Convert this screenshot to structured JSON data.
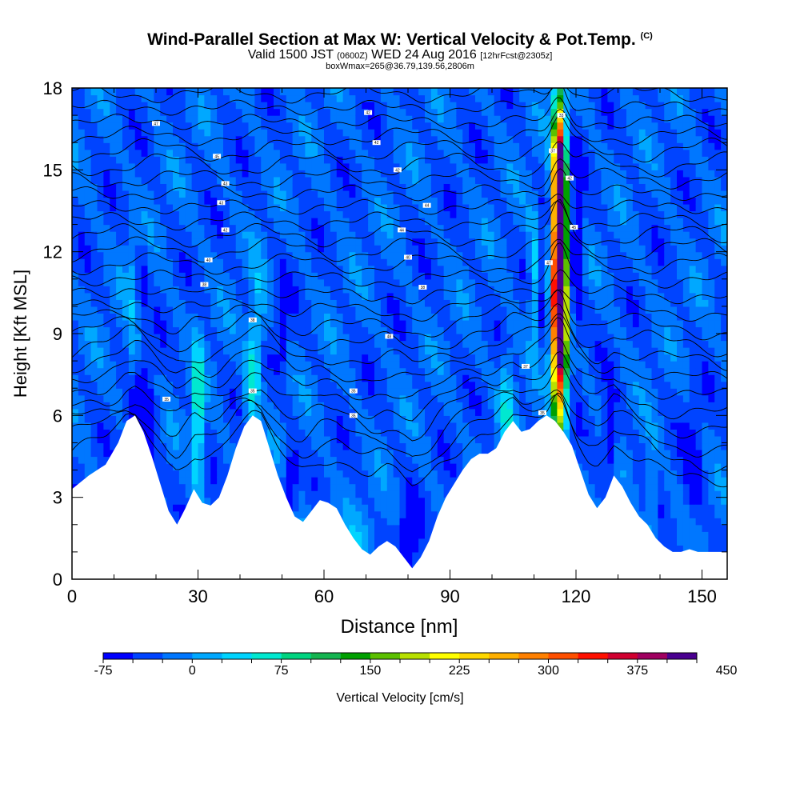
{
  "chart_data": {
    "type": "heatmap",
    "title": "Wind-Parallel Section at Max W: Vertical Velocity & Pot.Temp.",
    "title_mark": "(C)",
    "subtitle_main": "Valid 1500 JST",
    "subtitle_utc": "(0600Z)",
    "subtitle_date": "WED 24 Aug 2016",
    "subtitle_fcst": "[12hrFcst@2305z]",
    "subtitle2": "boxWmax=265@36.79,139.56,2806m",
    "xlabel": "Distance [nm]",
    "ylabel": "Height [Kft MSL]",
    "xlim": [
      0,
      156
    ],
    "ylim": [
      0,
      18
    ],
    "x_ticks": [
      "0",
      "30",
      "60",
      "90",
      "120",
      "150"
    ],
    "y_ticks": [
      "0",
      "3",
      "6",
      "9",
      "12",
      "15",
      "18"
    ],
    "colorbar": {
      "label": "Vertical Velocity [cm/s]",
      "min": -75,
      "step": 25,
      "tick_labels": [
        "-75",
        "0",
        "75",
        "150",
        "225",
        "300",
        "375",
        "450"
      ],
      "colors": [
        "#0000ff",
        "#0044ff",
        "#0077ff",
        "#00a8ff",
        "#00d4ff",
        "#00e8d0",
        "#00d480",
        "#14b450",
        "#00a000",
        "#5cc000",
        "#b8e000",
        "#ffff00",
        "#ffd800",
        "#ffb000",
        "#ff8000",
        "#ff5000",
        "#ff1000",
        "#d00030",
        "#a00060",
        "#4a0090"
      ]
    },
    "background_w": -25,
    "w_features": [
      {
        "x": 14.5,
        "z": 11.0,
        "w": 30,
        "sx": 1.2,
        "sz": 1.5,
        "tilt": 0.0
      },
      {
        "x": 14.5,
        "z": 8.0,
        "w": 40,
        "sx": 1.2,
        "sz": 1.0,
        "tilt": 0.0
      },
      {
        "x": 17.0,
        "z": 5.5,
        "w": -75,
        "sx": 2.0,
        "sz": 1.5,
        "tilt": 0.0
      },
      {
        "x": 16.5,
        "z": 11.0,
        "w": -50,
        "sx": 0.8,
        "sz": 1.0,
        "tilt": 0.0
      },
      {
        "x": 30.0,
        "z": 6.5,
        "w": 110,
        "sx": 0.9,
        "sz": 1.6,
        "tilt": 0.0
      },
      {
        "x": 30.0,
        "z": 4.0,
        "w": 40,
        "sx": 1.0,
        "sz": 1.2,
        "tilt": 0.0
      },
      {
        "x": 44.0,
        "z": 9.0,
        "w": 65,
        "sx": 1.4,
        "sz": 1.6,
        "tilt": 0.3
      },
      {
        "x": 42.5,
        "z": 7.0,
        "w": 60,
        "sx": 1.2,
        "sz": 1.2,
        "tilt": 0.0
      },
      {
        "x": 50.0,
        "z": 9.5,
        "w": -60,
        "sx": 0.9,
        "sz": 1.2,
        "tilt": 0.0
      },
      {
        "x": 52.0,
        "z": 3.5,
        "w": -60,
        "sx": 1.2,
        "sz": 1.0,
        "tilt": 0.0
      },
      {
        "x": 55.0,
        "z": 1.5,
        "w": 30,
        "sx": 3.0,
        "sz": 1.0,
        "tilt": 0.0
      },
      {
        "x": 67.0,
        "z": 1.3,
        "w": 30,
        "sx": 4.0,
        "sz": 0.8,
        "tilt": 0.0
      },
      {
        "x": 80.0,
        "z": 1.5,
        "w": -60,
        "sx": 1.5,
        "sz": 1.0,
        "tilt": 0.0
      },
      {
        "x": 103.5,
        "z": 6.5,
        "w": 70,
        "sx": 1.3,
        "sz": 1.4,
        "tilt": 0.0
      },
      {
        "x": 110.0,
        "z": 11.0,
        "w": 70,
        "sx": 0.9,
        "sz": 1.6,
        "tilt": 0.0
      },
      {
        "x": 116.0,
        "z": 11.5,
        "w": 450,
        "sx": 1.25,
        "sz": 2.8,
        "tilt": 0.0
      },
      {
        "x": 116.0,
        "z": 8.0,
        "w": 250,
        "sx": 1.2,
        "sz": 2.0,
        "tilt": 0.0
      },
      {
        "x": 116.0,
        "z": 15.0,
        "w": 330,
        "sx": 0.95,
        "sz": 2.0,
        "tilt": 0.0
      },
      {
        "x": 112.5,
        "z": 11.0,
        "w": -50,
        "sx": 0.7,
        "sz": 2.0,
        "tilt": 0.0
      },
      {
        "x": 120.0,
        "z": 12.0,
        "w": -60,
        "sx": 1.0,
        "sz": 2.5,
        "tilt": 0.0
      },
      {
        "x": 128.0,
        "z": 5.0,
        "w": -60,
        "sx": 1.2,
        "sz": 1.2,
        "tilt": 0.0
      },
      {
        "x": 138.0,
        "z": 3.0,
        "w": 60,
        "sx": 0.8,
        "sz": 1.3,
        "tilt": 0.0
      },
      {
        "x": 148.0,
        "z": 4.0,
        "w": -40,
        "sx": 1.5,
        "sz": 1.5,
        "tilt": 0.0
      }
    ],
    "terrain": {
      "x": [
        0,
        4,
        8,
        11,
        13,
        15,
        17,
        19,
        21,
        23,
        25,
        27,
        29,
        31,
        33,
        35,
        37,
        39,
        41,
        43,
        45,
        47,
        49,
        51,
        53,
        55,
        57,
        59,
        61,
        63,
        65,
        67,
        69,
        71,
        73,
        75,
        77,
        79,
        81,
        83,
        85,
        87,
        89,
        91,
        93,
        95,
        97,
        99,
        101,
        103,
        105,
        107,
        109,
        111,
        113,
        115,
        117,
        119,
        121,
        123,
        125,
        127,
        129,
        131,
        133,
        135,
        137,
        139,
        141,
        143,
        145,
        147,
        149,
        151,
        153,
        155,
        156
      ],
      "z": [
        3.3,
        3.8,
        4.2,
        5.0,
        5.8,
        6.0,
        5.4,
        4.5,
        3.5,
        2.5,
        2.0,
        2.6,
        3.3,
        2.8,
        2.7,
        3.0,
        3.8,
        4.8,
        5.6,
        6.0,
        5.8,
        4.8,
        3.8,
        3.0,
        2.3,
        2.1,
        2.5,
        2.9,
        2.8,
        2.6,
        2.0,
        1.5,
        1.1,
        0.9,
        1.2,
        1.4,
        1.2,
        0.8,
        0.4,
        0.8,
        1.4,
        2.3,
        3.0,
        3.5,
        4.0,
        4.4,
        4.6,
        4.6,
        4.8,
        5.4,
        5.8,
        5.4,
        5.5,
        5.8,
        6.0,
        5.8,
        5.4,
        4.9,
        4.0,
        3.1,
        2.6,
        3.0,
        3.8,
        3.4,
        2.8,
        2.3,
        2.0,
        1.5,
        1.2,
        1.0,
        1.0,
        1.1,
        1.0,
        1.0,
        1.0,
        1.0,
        1.0
      ]
    },
    "theta_levels": {
      "count": 26,
      "start_height": 4.8,
      "spacing": 0.52
    },
    "theta_labels": [
      "47",
      "45",
      "43",
      "43",
      "42",
      "40",
      "38",
      "38",
      "35",
      "35",
      "35",
      "35",
      "42",
      "42",
      "42",
      "44",
      "44",
      "40",
      "38",
      "48",
      "37",
      "35",
      "33",
      "37",
      "42",
      "45",
      "47"
    ]
  }
}
